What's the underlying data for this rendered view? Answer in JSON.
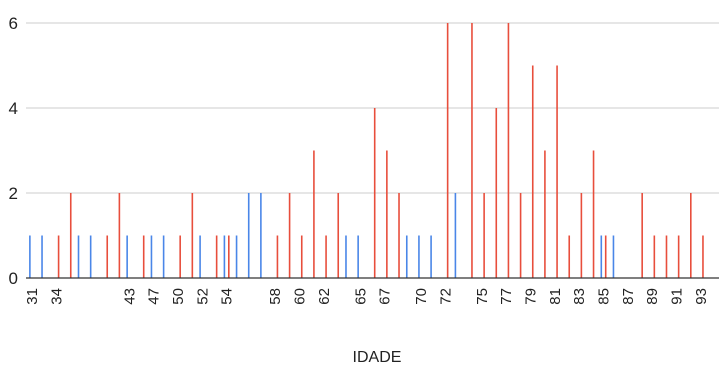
{
  "chart_data": {
    "type": "bar",
    "title": "",
    "xlabel": "IDADE",
    "ylabel": "",
    "ylim": [
      0,
      6
    ],
    "yticks": [
      0,
      2,
      4,
      6
    ],
    "grid": true,
    "categories": [
      "31",
      "32",
      "34",
      "35",
      "36",
      "37",
      "40",
      "41",
      "43",
      "45",
      "47",
      "48",
      "50",
      "51",
      "52",
      "53",
      "54",
      "55",
      "56",
      "57",
      "58",
      "59",
      "60",
      "61",
      "62",
      "63",
      "64",
      "65",
      "66",
      "67",
      "68",
      "69",
      "70",
      "71",
      "72",
      "73",
      "74",
      "75",
      "76",
      "77",
      "78",
      "79",
      "80",
      "81",
      "82",
      "83",
      "84",
      "85",
      "86",
      "87",
      "88",
      "89",
      "90",
      "91",
      "92",
      "93",
      "94"
    ],
    "x_tick_labels": [
      "31",
      "34",
      "43",
      "47",
      "50",
      "52",
      "54",
      "58",
      "60",
      "62",
      "65",
      "67",
      "70",
      "72",
      "75",
      "77",
      "79",
      "81",
      "83",
      "85",
      "87",
      "89",
      "91",
      "93"
    ],
    "series": [
      {
        "color": "#4a86e8",
        "values": [
          1,
          1,
          0,
          0,
          1,
          1,
          0,
          0,
          1,
          0,
          1,
          1,
          0,
          0,
          1,
          0,
          1,
          1,
          2,
          2,
          0,
          0,
          0,
          0,
          0,
          0,
          1,
          1,
          0,
          0,
          0,
          1,
          1,
          1,
          0,
          2,
          0,
          0,
          0,
          0,
          0,
          0,
          0,
          0,
          0,
          0,
          0,
          1,
          1,
          0,
          0,
          0,
          0,
          0,
          0,
          0,
          0
        ]
      },
      {
        "color": "#e84e3c",
        "values": [
          0,
          0,
          1,
          2,
          0,
          0,
          1,
          2,
          0,
          1,
          0,
          0,
          1,
          2,
          0,
          1,
          1,
          0,
          0,
          0,
          1,
          2,
          1,
          3,
          1,
          2,
          0,
          0,
          4,
          3,
          2,
          0,
          0,
          0,
          6,
          0,
          6,
          2,
          4,
          6,
          2,
          5,
          3,
          5,
          1,
          2,
          3,
          1,
          0,
          0,
          2,
          1,
          1,
          1,
          2,
          1,
          0
        ]
      }
    ]
  }
}
